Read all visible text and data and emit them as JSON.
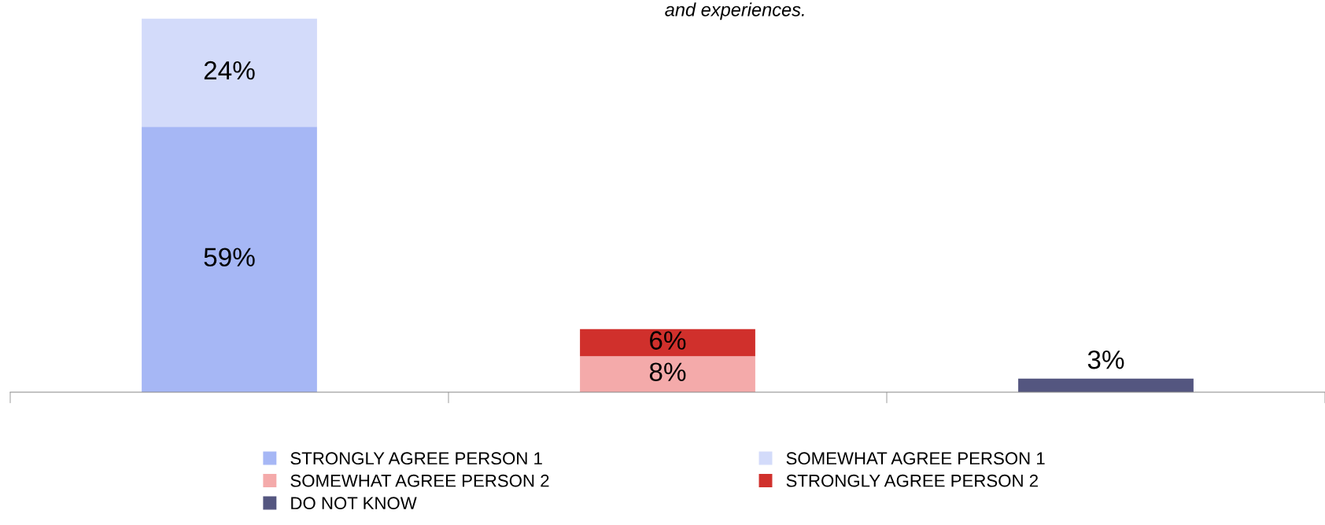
{
  "chart_data": {
    "type": "bar",
    "title": "and experiences.",
    "categories": [
      null,
      null,
      null
    ],
    "stacked": true,
    "grid": false,
    "legend": "bottom",
    "series": [
      {
        "name": "STRONGLY AGREE PERSON 1",
        "color": "#a6b7f5",
        "values": [
          59,
          null,
          null
        ],
        "value_labels": [
          "59%",
          null,
          null
        ]
      },
      {
        "name": "SOMEWHAT AGREE PERSON 1",
        "color": "#d3dbfa",
        "values": [
          24,
          null,
          null
        ],
        "value_labels": [
          "24%",
          null,
          null
        ]
      },
      {
        "name": "SOMEWHAT AGREE PERSON 2",
        "color": "#f4aaaa",
        "values": [
          null,
          8,
          null
        ],
        "value_labels": [
          null,
          "8%",
          null
        ]
      },
      {
        "name": "STRONGLY AGREE PERSON 2",
        "color": "#d0302c",
        "values": [
          null,
          6,
          null
        ],
        "value_labels": [
          null,
          "6%",
          null
        ]
      },
      {
        "name": "DO NOT KNOW",
        "color": "#545680",
        "values": [
          null,
          null,
          3
        ],
        "value_labels": [
          null,
          null,
          "3%"
        ]
      }
    ]
  }
}
